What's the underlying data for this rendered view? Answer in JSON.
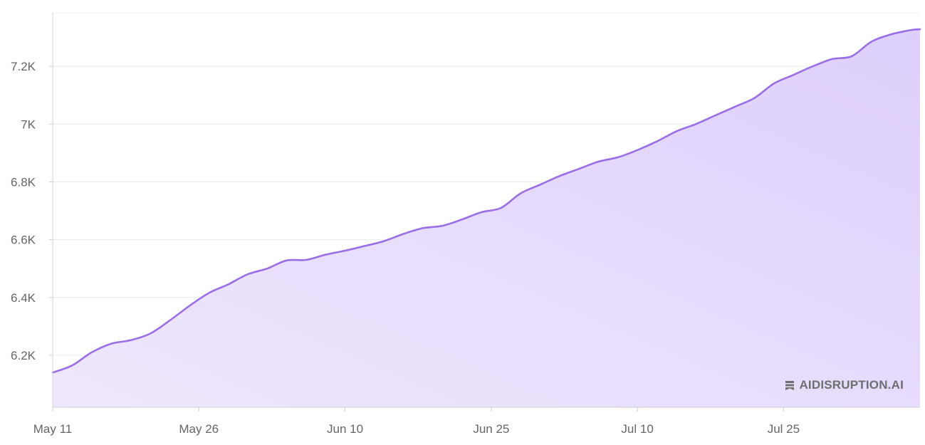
{
  "chart_data": {
    "type": "area",
    "x_tick_labels": [
      "May 11",
      "May 26",
      "Jun 10",
      "Jun 25",
      "Jul 10",
      "Jul 25"
    ],
    "y_tick_labels": [
      "6.2K",
      "6.4K",
      "6.6K",
      "6.8K",
      "7K",
      "7.2K"
    ],
    "x_range": [
      "2024-05-11",
      "2024-08-08"
    ],
    "ylim": [
      6020,
      7385
    ],
    "grid": true,
    "colors": {
      "line": "#9b6ee8",
      "fill": "#e0d4fc"
    },
    "series": [
      {
        "x": [
          "2024-05-11",
          "2024-05-13",
          "2024-05-15",
          "2024-05-17",
          "2024-05-19",
          "2024-05-21",
          "2024-05-23",
          "2024-05-25",
          "2024-05-27",
          "2024-05-29",
          "2024-05-31",
          "2024-06-02",
          "2024-06-04",
          "2024-06-06",
          "2024-06-08",
          "2024-06-10",
          "2024-06-12",
          "2024-06-14",
          "2024-06-16",
          "2024-06-18",
          "2024-06-20",
          "2024-06-22",
          "2024-06-24",
          "2024-06-26",
          "2024-06-28",
          "2024-06-30",
          "2024-07-02",
          "2024-07-04",
          "2024-07-06",
          "2024-07-08",
          "2024-07-10",
          "2024-07-12",
          "2024-07-14",
          "2024-07-16",
          "2024-07-18",
          "2024-07-20",
          "2024-07-22",
          "2024-07-24",
          "2024-07-26",
          "2024-07-28",
          "2024-07-30",
          "2024-08-01",
          "2024-08-03",
          "2024-08-05",
          "2024-08-07",
          "2024-08-08"
        ],
        "y": [
          6140,
          6165,
          6210,
          6240,
          6252,
          6275,
          6320,
          6370,
          6415,
          6445,
          6480,
          6500,
          6528,
          6530,
          6548,
          6562,
          6578,
          6595,
          6620,
          6640,
          6648,
          6670,
          6695,
          6710,
          6760,
          6790,
          6820,
          6845,
          6870,
          6885,
          6910,
          6940,
          6975,
          7000,
          7030,
          7060,
          7090,
          7140,
          7170,
          7200,
          7225,
          7235,
          7285,
          7310,
          7325,
          7328
        ]
      }
    ]
  },
  "watermark": {
    "label": "AIDISRUPTION.AI",
    "icon": "flag-icon"
  }
}
